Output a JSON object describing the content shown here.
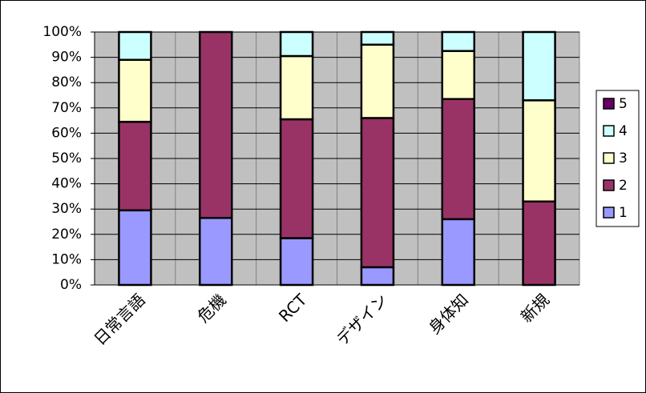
{
  "chart_data": {
    "type": "stacked_bar_100",
    "categories": [
      "日常言語",
      "危機",
      "RCT",
      "デザイン",
      "身体知",
      "新規"
    ],
    "series": [
      {
        "name": "1",
        "color": "#9999ff",
        "values": [
          29.5,
          26.5,
          18.5,
          7,
          26,
          0
        ]
      },
      {
        "name": "2",
        "color": "#993366",
        "values": [
          35,
          73.5,
          47,
          59,
          47.5,
          33
        ]
      },
      {
        "name": "3",
        "color": "#ffffcc",
        "values": [
          24.5,
          0,
          25,
          29,
          19,
          40
        ]
      },
      {
        "name": "4",
        "color": "#ccffff",
        "values": [
          11,
          0,
          9.5,
          5,
          7.5,
          27
        ]
      },
      {
        "name": "5",
        "color": "#660066",
        "values": [
          0,
          0,
          0,
          0,
          0,
          0
        ]
      }
    ],
    "ylim": [
      0,
      100
    ],
    "yticks": [
      {
        "value": 0,
        "label": "0%"
      },
      {
        "value": 10,
        "label": "10%"
      },
      {
        "value": 20,
        "label": "20%"
      },
      {
        "value": 30,
        "label": "30%"
      },
      {
        "value": 40,
        "label": "40%"
      },
      {
        "value": 50,
        "label": "50%"
      },
      {
        "value": 60,
        "label": "60%"
      },
      {
        "value": 70,
        "label": "70%"
      },
      {
        "value": 80,
        "label": "80%"
      },
      {
        "value": 90,
        "label": "90%"
      },
      {
        "value": 100,
        "label": "100%"
      }
    ],
    "grid": true,
    "plot_background": "#c0c0c0",
    "legend": "right"
  }
}
